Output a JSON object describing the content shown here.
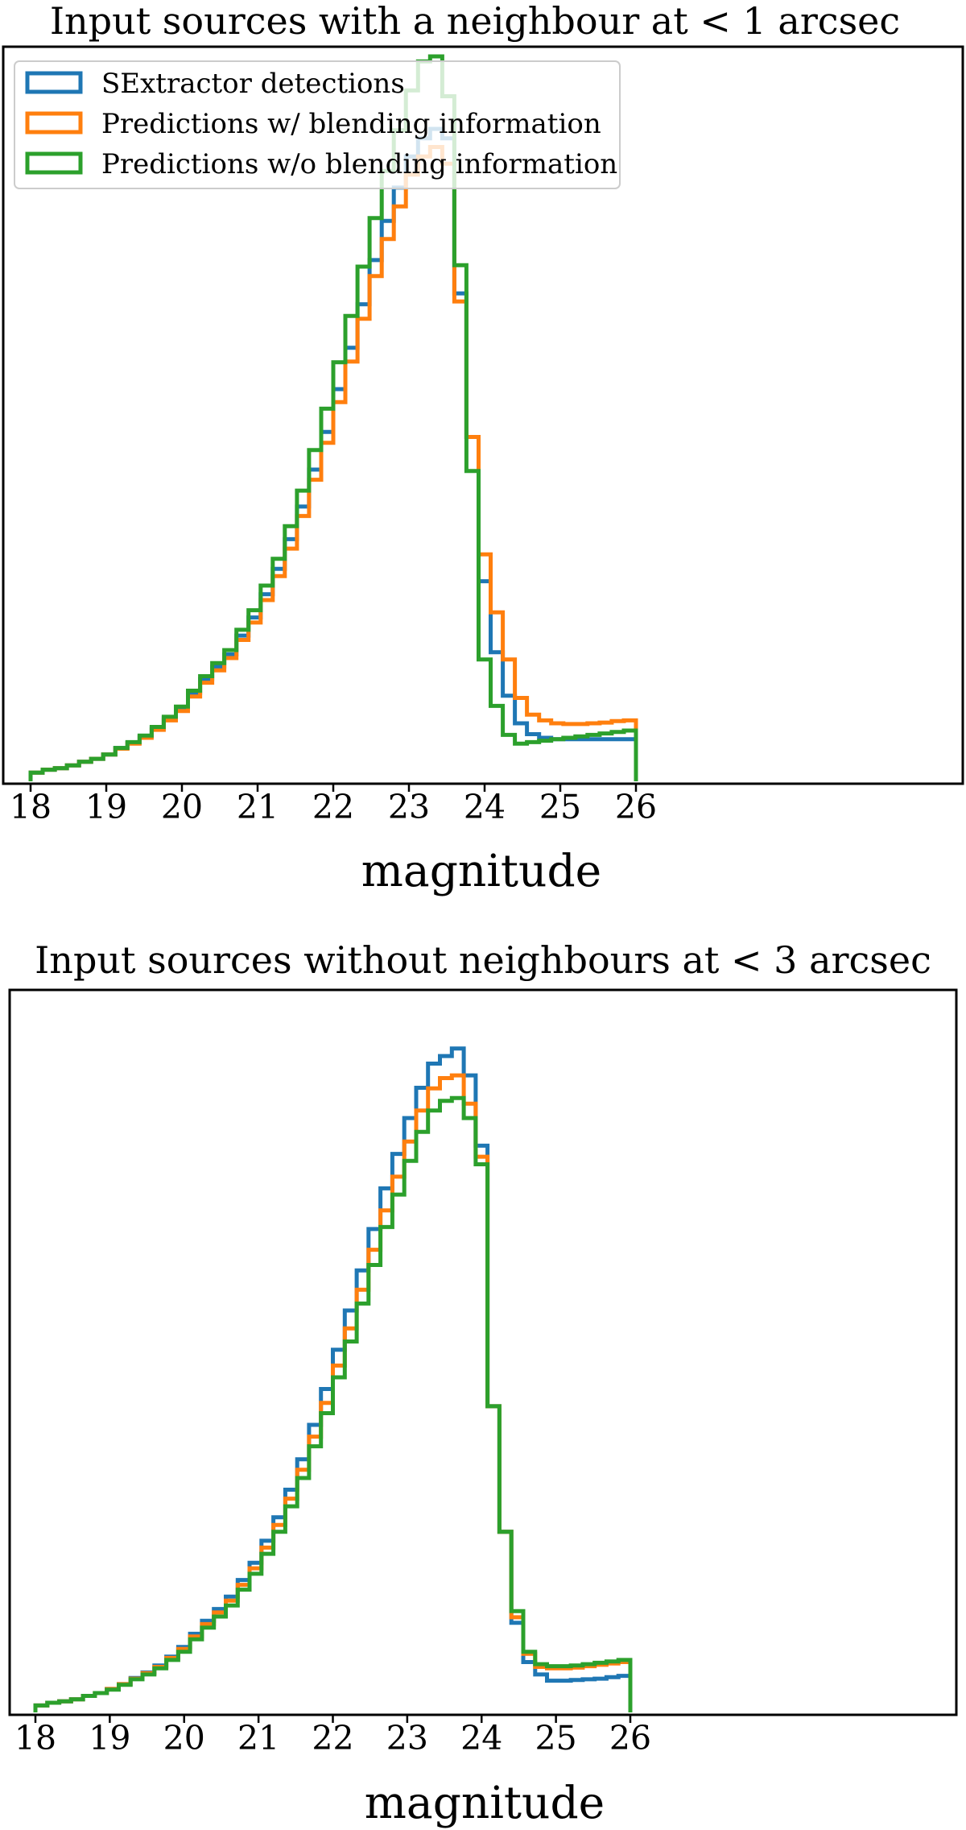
{
  "colors": {
    "sextractor": "#1f77b4",
    "with_blending": "#ff7f0e",
    "without_blending": "#2ca02c"
  },
  "chart_data": [
    {
      "type": "histogram-step",
      "title": "Input sources with a neighbour at < 1 arcsec",
      "xlabel": "magnitude",
      "ylabel": "",
      "xlim": [
        17.9,
        26.4
      ],
      "ylim": [
        0,
        1.0
      ],
      "xticks": [
        "18",
        "19",
        "20",
        "21",
        "22",
        "23",
        "24",
        "25",
        "26"
      ],
      "yticks_visible": false,
      "grid": false,
      "legend": {
        "placement": "top-left",
        "entries": [
          "SExtractor detections",
          "Predictions w/ blending information",
          "Predictions w/o blending information"
        ]
      },
      "bin_start": 18.0,
      "bin_width": 0.16,
      "series": [
        {
          "name": "SExtractor detections",
          "color_key": "sextractor",
          "values": [
            0.012,
            0.016,
            0.018,
            0.022,
            0.027,
            0.031,
            0.037,
            0.046,
            0.053,
            0.062,
            0.073,
            0.087,
            0.1,
            0.122,
            0.141,
            0.158,
            0.175,
            0.201,
            0.226,
            0.258,
            0.293,
            0.334,
            0.379,
            0.43,
            0.482,
            0.541,
            0.598,
            0.658,
            0.719,
            0.773,
            0.819,
            0.862,
            0.887,
            0.9,
            0.887,
            0.673,
            0.475,
            0.276,
            0.178,
            0.118,
            0.08,
            0.065,
            0.06,
            0.058,
            0.058,
            0.058,
            0.058,
            0.058,
            0.058,
            0.058
          ]
        },
        {
          "name": "Predictions w/ blending information",
          "color_key": "with_blending",
          "values": [
            0.012,
            0.016,
            0.018,
            0.022,
            0.027,
            0.031,
            0.037,
            0.045,
            0.052,
            0.06,
            0.071,
            0.084,
            0.097,
            0.117,
            0.136,
            0.153,
            0.17,
            0.195,
            0.219,
            0.25,
            0.283,
            0.321,
            0.366,
            0.416,
            0.467,
            0.523,
            0.579,
            0.638,
            0.697,
            0.748,
            0.793,
            0.837,
            0.862,
            0.875,
            0.852,
            0.662,
            0.475,
            0.313,
            0.233,
            0.168,
            0.115,
            0.092,
            0.084,
            0.08,
            0.079,
            0.079,
            0.08,
            0.081,
            0.083,
            0.084
          ]
        },
        {
          "name": "Predictions w/o blending information",
          "color_key": "without_blending",
          "values": [
            0.012,
            0.016,
            0.018,
            0.022,
            0.027,
            0.031,
            0.037,
            0.046,
            0.054,
            0.063,
            0.075,
            0.089,
            0.103,
            0.125,
            0.145,
            0.163,
            0.181,
            0.209,
            0.236,
            0.27,
            0.307,
            0.352,
            0.401,
            0.457,
            0.514,
            0.578,
            0.642,
            0.71,
            0.777,
            0.842,
            0.898,
            0.953,
            0.993,
            1.0,
            0.945,
            0.712,
            0.428,
            0.168,
            0.104,
            0.064,
            0.052,
            0.054,
            0.056,
            0.058,
            0.06,
            0.062,
            0.064,
            0.066,
            0.068,
            0.07
          ]
        }
      ]
    },
    {
      "type": "histogram-step",
      "title": "Input sources without neighbours at < 3 arcsec",
      "xlabel": "magnitude",
      "ylabel": "",
      "xlim": [
        17.9,
        26.4
      ],
      "ylim": [
        0,
        1.0
      ],
      "xticks": [
        "18",
        "19",
        "20",
        "21",
        "22",
        "23",
        "24",
        "25",
        "26"
      ],
      "yticks_visible": false,
      "grid": false,
      "legend": null,
      "bin_start": 18.0,
      "bin_width": 0.16,
      "series": [
        {
          "name": "SExtractor detections",
          "color_key": "sextractor",
          "values": [
            0.01,
            0.014,
            0.016,
            0.019,
            0.024,
            0.028,
            0.034,
            0.041,
            0.05,
            0.058,
            0.068,
            0.081,
            0.095,
            0.114,
            0.133,
            0.15,
            0.168,
            0.192,
            0.217,
            0.249,
            0.283,
            0.323,
            0.367,
            0.417,
            0.469,
            0.526,
            0.583,
            0.641,
            0.701,
            0.76,
            0.81,
            0.862,
            0.906,
            0.941,
            0.952,
            0.963,
            0.924,
            0.822,
            0.444,
            0.262,
            0.13,
            0.073,
            0.055,
            0.046,
            0.046,
            0.047,
            0.048,
            0.049,
            0.051,
            0.053
          ]
        },
        {
          "name": "Predictions w/ blending information",
          "color_key": "with_blending",
          "values": [
            0.01,
            0.014,
            0.016,
            0.019,
            0.024,
            0.028,
            0.034,
            0.041,
            0.049,
            0.057,
            0.066,
            0.079,
            0.092,
            0.11,
            0.128,
            0.145,
            0.162,
            0.185,
            0.209,
            0.239,
            0.272,
            0.31,
            0.352,
            0.4,
            0.449,
            0.503,
            0.557,
            0.613,
            0.671,
            0.728,
            0.777,
            0.828,
            0.873,
            0.905,
            0.92,
            0.924,
            0.883,
            0.806,
            0.444,
            0.262,
            0.138,
            0.085,
            0.066,
            0.064,
            0.064,
            0.065,
            0.067,
            0.069,
            0.071,
            0.073
          ]
        },
        {
          "name": "Predictions w/o blending information",
          "color_key": "without_blending",
          "values": [
            0.01,
            0.014,
            0.016,
            0.019,
            0.024,
            0.028,
            0.033,
            0.04,
            0.048,
            0.055,
            0.064,
            0.076,
            0.088,
            0.106,
            0.123,
            0.139,
            0.155,
            0.178,
            0.201,
            0.23,
            0.262,
            0.299,
            0.34,
            0.386,
            0.434,
            0.486,
            0.538,
            0.593,
            0.649,
            0.704,
            0.751,
            0.8,
            0.842,
            0.873,
            0.887,
            0.891,
            0.862,
            0.795,
            0.444,
            0.262,
            0.147,
            0.088,
            0.07,
            0.067,
            0.067,
            0.068,
            0.07,
            0.072,
            0.074,
            0.076
          ]
        }
      ]
    }
  ]
}
